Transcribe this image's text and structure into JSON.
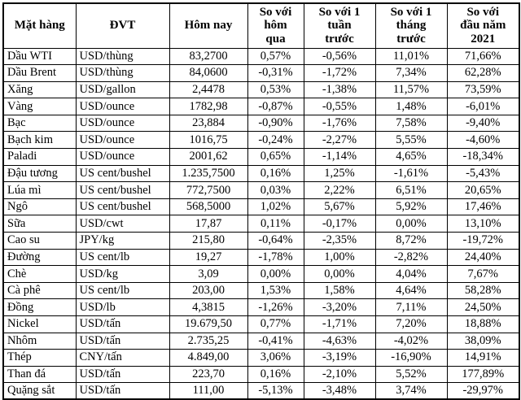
{
  "table": {
    "headers": [
      "Mặt hàng",
      "ĐVT",
      "Hôm nay",
      "So với\nhôm\nqua",
      "So với 1\ntuần\ntrước",
      "So với 1\ntháng\ntrước",
      "So với\nđầu năm\n2021"
    ],
    "rows": [
      [
        "Dầu WTI",
        "USD/thùng",
        "83,2700",
        "0,57%",
        "-0,56%",
        "11,01%",
        "71,66%"
      ],
      [
        "Dầu Brent",
        "USD/thùng",
        "84,0600",
        "-0,31%",
        "-1,72%",
        "7,34%",
        "62,28%"
      ],
      [
        "Xăng",
        "USD/gallon",
        "2,4478",
        "0,53%",
        "-1,38%",
        "11,57%",
        "73,59%"
      ],
      [
        "Vàng",
        "USD/ounce",
        "1782,98",
        "-0,87%",
        "-0,55%",
        "1,48%",
        "-6,01%"
      ],
      [
        "Bạc",
        "USD/ounce",
        "23,884",
        "-0,90%",
        "-1,76%",
        "7,58%",
        "-9,40%"
      ],
      [
        "Bạch kim",
        "USD/ounce",
        "1016,75",
        "-0,24%",
        "-2,27%",
        "5,55%",
        "-4,60%"
      ],
      [
        "Paladi",
        "USD/ounce",
        "2001,62",
        "0,65%",
        "-1,14%",
        "4,65%",
        "-18,34%"
      ],
      [
        "Đậu tương",
        "US cent/bushel",
        "1.235,7500",
        "0,16%",
        "1,25%",
        "-1,61%",
        "-5,43%"
      ],
      [
        "Lúa mì",
        "US cent/bushel",
        "772,7500",
        "0,03%",
        "2,22%",
        "6,51%",
        "20,65%"
      ],
      [
        "Ngô",
        "US cent/bushel",
        "568,5000",
        "1,02%",
        "5,67%",
        "5,92%",
        "17,46%"
      ],
      [
        "Sữa",
        "USD/cwt",
        "17,87",
        "0,11%",
        "-0,17%",
        "0,00%",
        "13,10%"
      ],
      [
        "Cao su",
        "JPY/kg",
        "215,80",
        "-0,64%",
        "-2,35%",
        "8,72%",
        "-19,72%"
      ],
      [
        "Đường",
        "US cent/lb",
        "19,27",
        "-1,78%",
        "1,00%",
        "-2,82%",
        "24,40%"
      ],
      [
        "Chè",
        "USD/kg",
        "3,09",
        "0,00%",
        "0,00%",
        "4,04%",
        "7,67%"
      ],
      [
        "Cà phê",
        "US cent/lb",
        "203,00",
        "1,53%",
        "1,58%",
        "4,64%",
        "58,28%"
      ],
      [
        "Đồng",
        "USD/lb",
        "4,3815",
        "-1,26%",
        "-3,20%",
        "7,11%",
        "24,50%"
      ],
      [
        "Nickel",
        "USD/tấn",
        "19.679,50",
        "0,77%",
        "-1,71%",
        "7,20%",
        "18,88%"
      ],
      [
        "Nhôm",
        "USD/tấn",
        "2.735,25",
        "-0,41%",
        "-4,63%",
        "-4,02%",
        "38,09%"
      ],
      [
        "Thép",
        "CNY/tấn",
        "4.849,00",
        "3,06%",
        "-3,19%",
        "-16,90%",
        "14,91%"
      ],
      [
        "Than đá",
        "USD/tấn",
        "223,70",
        "0,16%",
        "-2,10%",
        "5,52%",
        "177,89%"
      ],
      [
        "Quặng sắt",
        "USD/tấn",
        "111,00",
        "-5,13%",
        "-3,48%",
        "3,74%",
        "-29,97%"
      ]
    ]
  }
}
